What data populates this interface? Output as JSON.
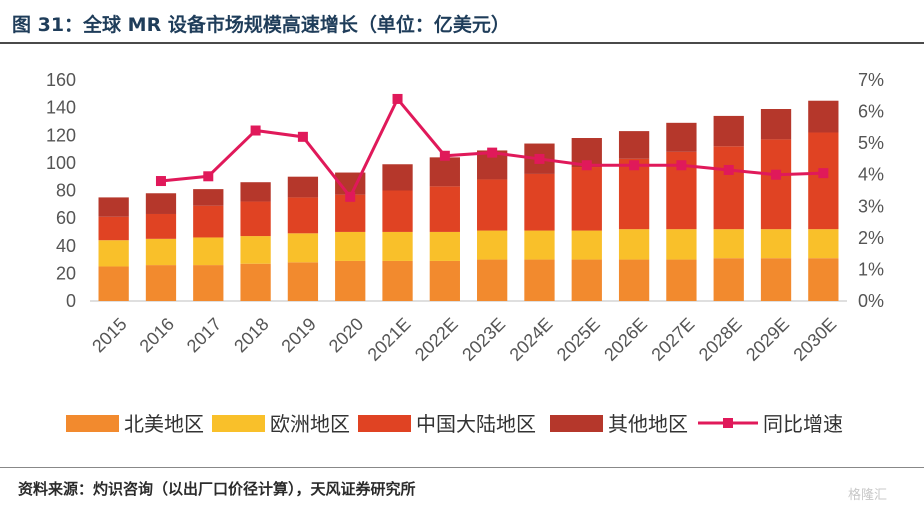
{
  "header": {
    "title": "图 31：全球 MR 设备市场规模高速增长（单位：亿美元）"
  },
  "footer": {
    "source": "资料来源：灼识咨询（以出厂口价径计算），天风证券研究所",
    "watermark": "格隆汇"
  },
  "chart_data": {
    "type": "bar",
    "stacked": true,
    "categories": [
      "2015",
      "2016",
      "2017",
      "2018",
      "2019",
      "2020",
      "2021E",
      "2022E",
      "2023E",
      "2024E",
      "2025E",
      "2026E",
      "2027E",
      "2028E",
      "2029E",
      "2030E"
    ],
    "y_left": {
      "min": 0,
      "max": 160,
      "ticks": [
        "0",
        "20",
        "40",
        "60",
        "80",
        "100",
        "120",
        "140",
        "160"
      ]
    },
    "y_right": {
      "min": 0,
      "max": 7,
      "ticks": [
        "0%",
        "1%",
        "2%",
        "3%",
        "4%",
        "5%",
        "6%",
        "7%"
      ]
    },
    "series": [
      {
        "name": "北美地区",
        "color": "#F28A2E",
        "values": [
          25,
          26,
          26,
          27,
          28,
          29,
          29,
          29,
          30,
          30,
          30,
          30,
          30,
          31,
          31,
          31
        ]
      },
      {
        "name": "欧洲地区",
        "color": "#F9C02A",
        "values": [
          19,
          19,
          20,
          20,
          21,
          21,
          21,
          21,
          21,
          21,
          21,
          22,
          22,
          21,
          21,
          21
        ]
      },
      {
        "name": "中国大陆地区",
        "color": "#E04323",
        "values": [
          17,
          18,
          23,
          25,
          26,
          27,
          30,
          33,
          37,
          41,
          46,
          51,
          56,
          60,
          65,
          70
        ]
      },
      {
        "name": "其他地区",
        "color": "#B5372B",
        "values": [
          14,
          15,
          12,
          14,
          15,
          16,
          19,
          21,
          21,
          22,
          21,
          20,
          21,
          22,
          22,
          23
        ]
      }
    ],
    "line": {
      "name": "同比增速",
      "color": "#E0195A",
      "axis": "right",
      "values": [
        null,
        3.8,
        3.95,
        5.4,
        5.2,
        3.3,
        6.4,
        4.6,
        4.7,
        4.5,
        4.3,
        4.3,
        4.3,
        4.15,
        4.0,
        4.05
      ]
    },
    "legend_position": "bottom",
    "grid": false
  }
}
